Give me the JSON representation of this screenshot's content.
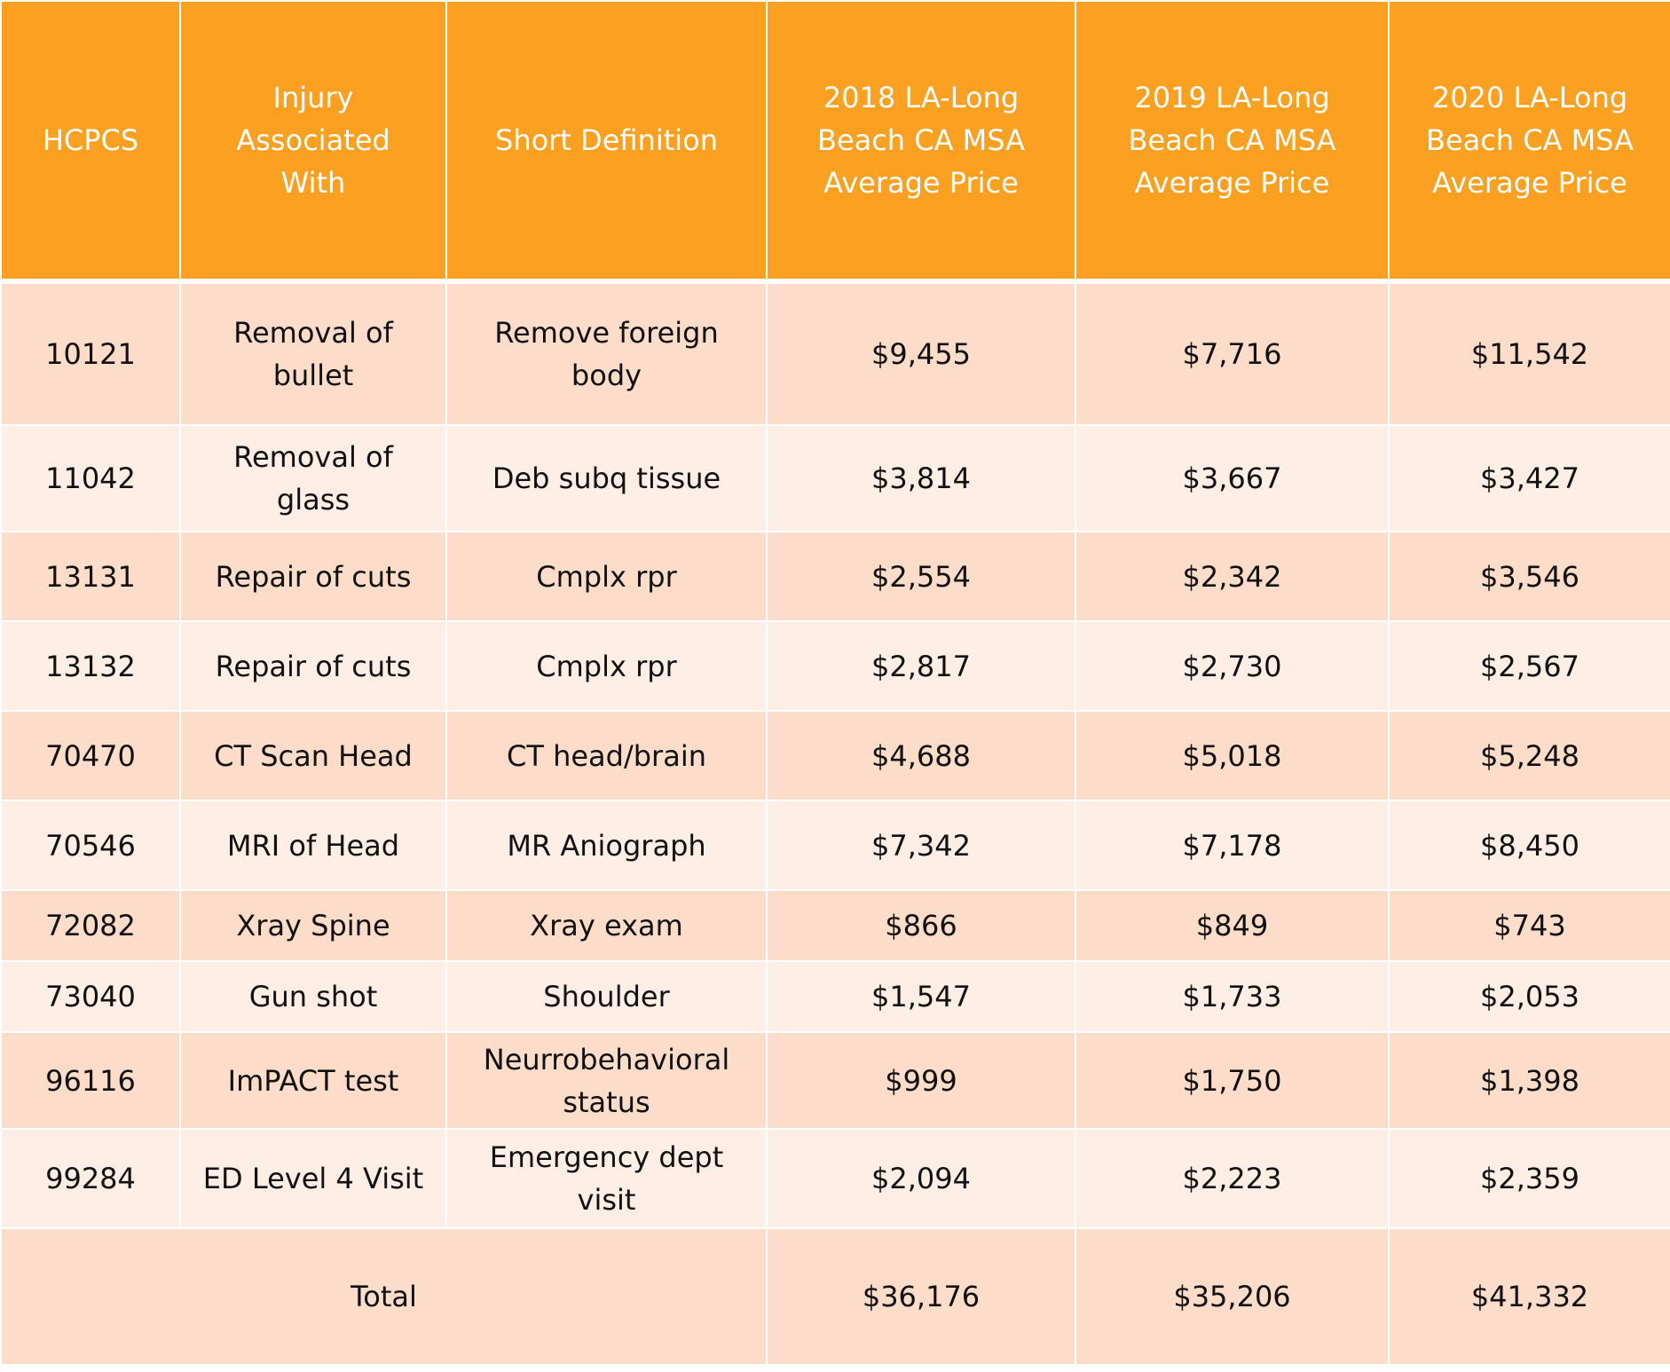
{
  "table": {
    "header": [
      "HCPCS",
      "Injury Associated With",
      "Short Definition",
      "2018 LA-Long Beach CA MSA Average Price",
      "2019 LA-Long Beach CA MSA Average Price",
      "2020 LA-Long Beach CA MSA Average Price"
    ],
    "rows": [
      [
        "10121",
        "Removal of bullet",
        "Remove foreign body",
        "$9,455",
        "$7,716",
        "$11,542"
      ],
      [
        "11042",
        "Removal of glass",
        "Deb subq tissue",
        "$3,814",
        "$3,667",
        "$3,427"
      ],
      [
        "13131",
        "Repair of cuts",
        "Cmplx rpr",
        "$2,554",
        "$2,342",
        "$3,546"
      ],
      [
        "13132",
        "Repair of cuts",
        "Cmplx rpr",
        "$2,817",
        "$2,730",
        "$2,567"
      ],
      [
        "70470",
        "CT Scan Head",
        "CT head/brain",
        "$4,688",
        "$5,018",
        "$5,248"
      ],
      [
        "70546",
        "MRI of Head",
        "MR Aniograph",
        "$7,342",
        "$7,178",
        "$8,450"
      ],
      [
        "72082",
        "Xray Spine",
        "Xray exam",
        "$866",
        "$849",
        "$743"
      ],
      [
        "73040",
        "Gun shot",
        "Shoulder",
        "$1,547",
        "$1,733",
        "$2,053"
      ],
      [
        "96116",
        "ImPACT test",
        "Neurrobehavioral status",
        "$999",
        "$1,750",
        "$1,398"
      ],
      [
        "99284",
        "ED Level 4 Visit",
        "Emergency dept visit",
        "$2,094",
        "$2,223",
        "$2,359"
      ]
    ],
    "total": {
      "label": "Total",
      "values": [
        "$36,176",
        "$35,206",
        "$41,332"
      ]
    }
  }
}
